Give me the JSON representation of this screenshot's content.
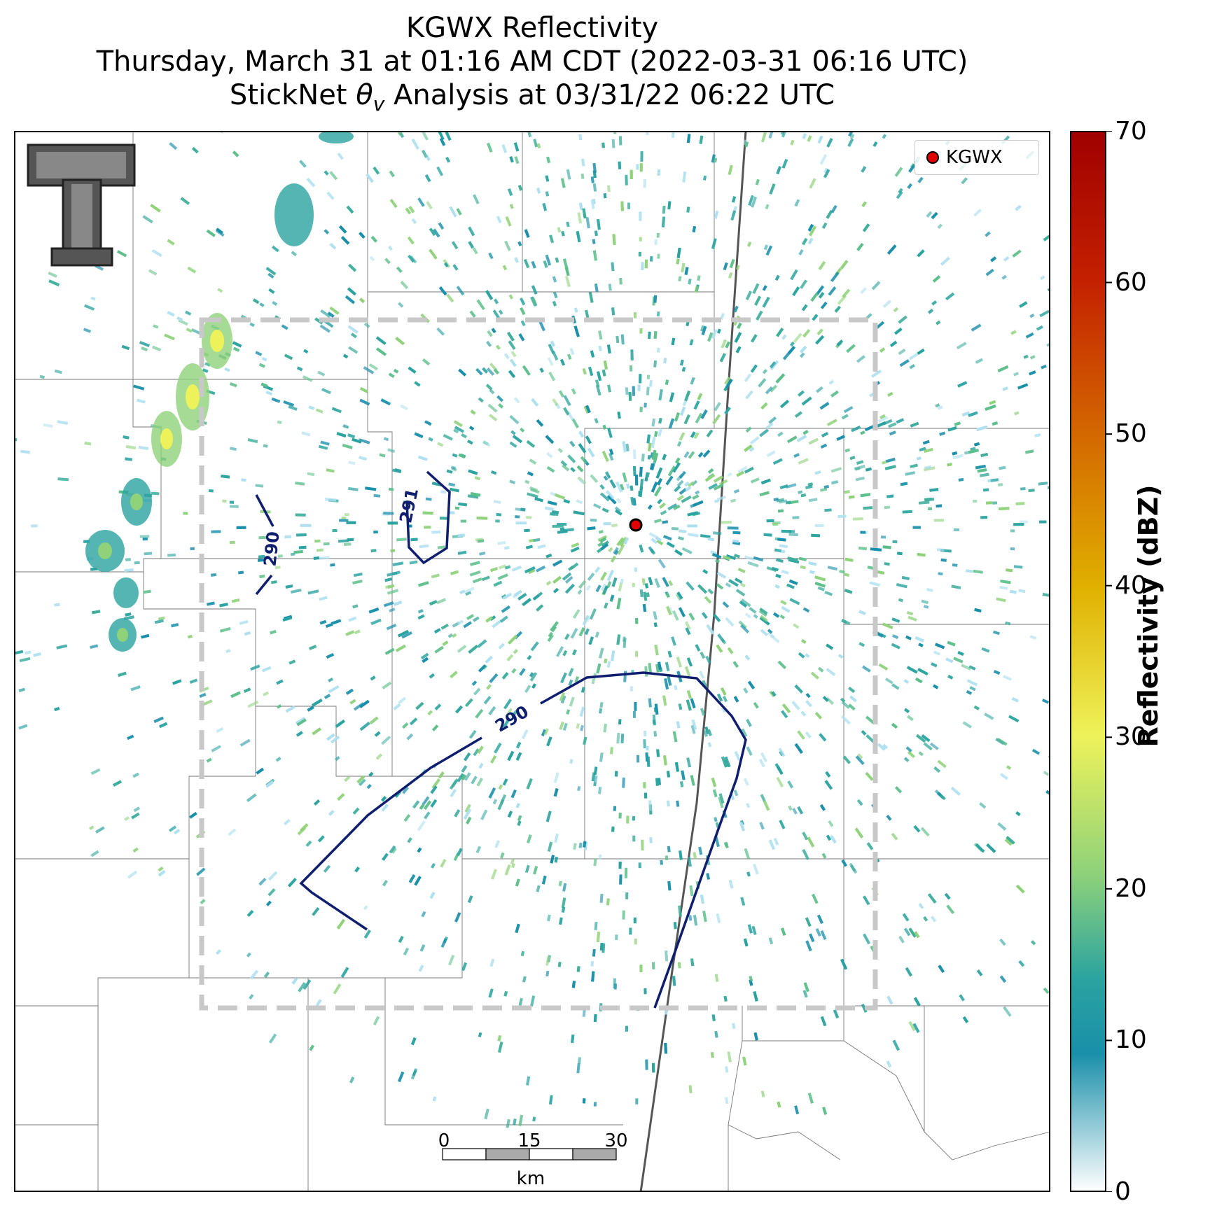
{
  "title": {
    "line1": "KGWX Reflectivity",
    "line2": "Thursday, March 31 at 01:16 AM CDT (2022-03-31 06:16 UTC)",
    "line3_prefix": "StickNet ",
    "line3_symbol": "θ",
    "line3_subscript": "v",
    "line3_suffix": " Analysis at 03/31/22 06:22 UTC"
  },
  "legend": {
    "label": "KGWX",
    "marker_color": "#e00000"
  },
  "colorbar": {
    "label": "Reflectivity (dBZ)",
    "ticks": [
      "0",
      "10",
      "20",
      "30",
      "40",
      "50",
      "60",
      "70"
    ],
    "range": [
      0,
      70
    ],
    "colors": [
      "#ffffff",
      "#1a8faa",
      "#2aa3a0",
      "#8fd27a",
      "#eef25a",
      "#e0b000",
      "#d46a00",
      "#c42000",
      "#a00000"
    ]
  },
  "contours": [
    {
      "label": "291",
      "value": 291
    },
    {
      "label": "290",
      "value": 290
    },
    {
      "label": "290",
      "value": 290
    }
  ],
  "scalebar": {
    "ticks": [
      "0",
      "15",
      "30"
    ],
    "unit": "km"
  },
  "logo": {
    "icon": "double-t-logo-icon"
  },
  "radar_site": {
    "name": "KGWX"
  }
}
